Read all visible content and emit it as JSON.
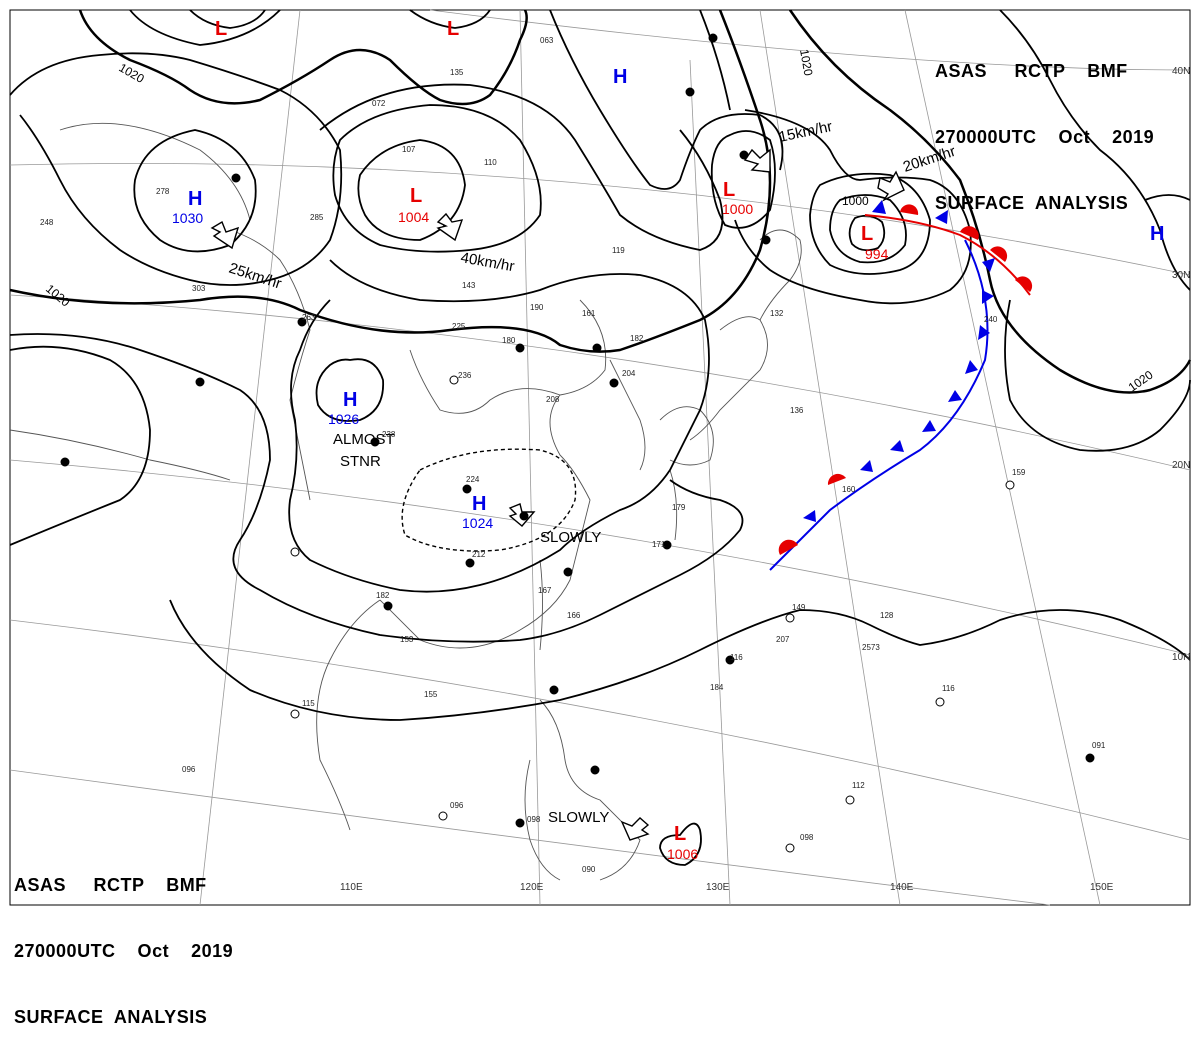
{
  "header": {
    "line1": "ASAS     RCTP    BMF",
    "line2": "270000UTC    Oct    2019",
    "line3": "SURFACE  ANALYSIS"
  },
  "colors": {
    "low": "#e60000",
    "high": "#0000e6",
    "isobar": "#000000",
    "coast": "#555555",
    "grid": "#999999",
    "warm_front": "#e60000",
    "cold_front": "#0000e6"
  },
  "lat_labels": [
    "40N",
    "30N",
    "20N",
    "10N"
  ],
  "lon_labels": [
    "110E",
    "120E",
    "130E",
    "140E",
    "150E"
  ],
  "isobar_labels": [
    "1020",
    "1020",
    "1020",
    "1020",
    "1000"
  ],
  "pressure_centers": [
    {
      "type": "L",
      "value": ""
    },
    {
      "type": "L",
      "value": ""
    },
    {
      "type": "H",
      "value": ""
    },
    {
      "type": "H",
      "value": "1030"
    },
    {
      "type": "L",
      "value": "1004"
    },
    {
      "type": "L",
      "value": "1000"
    },
    {
      "type": "L",
      "value": "994"
    },
    {
      "type": "H",
      "value": ""
    },
    {
      "type": "H",
      "value": "1026"
    },
    {
      "type": "H",
      "value": "1024"
    },
    {
      "type": "L",
      "value": "1006"
    }
  ],
  "motion_labels": [
    "25km/hr",
    "40km/hr",
    "15km/hr",
    "20km/hr",
    "ALMOST",
    "STNR",
    "SLOWLY",
    "SLOWLY"
  ],
  "station_labels": [
    "278",
    "248",
    "225",
    "236",
    "190",
    "161",
    "182",
    "204",
    "208",
    "180",
    "143",
    "224",
    "212",
    "238",
    "159",
    "160",
    "179",
    "171",
    "166",
    "167",
    "182",
    "153",
    "155",
    "115",
    "096",
    "098",
    "116",
    "149",
    "128",
    "116",
    "091",
    "112",
    "098",
    "240",
    "136",
    "132",
    "110",
    "119",
    "063",
    "135",
    "072",
    "107",
    "285",
    "303",
    "263",
    "096",
    "090",
    "207",
    "184",
    "2573"
  ]
}
